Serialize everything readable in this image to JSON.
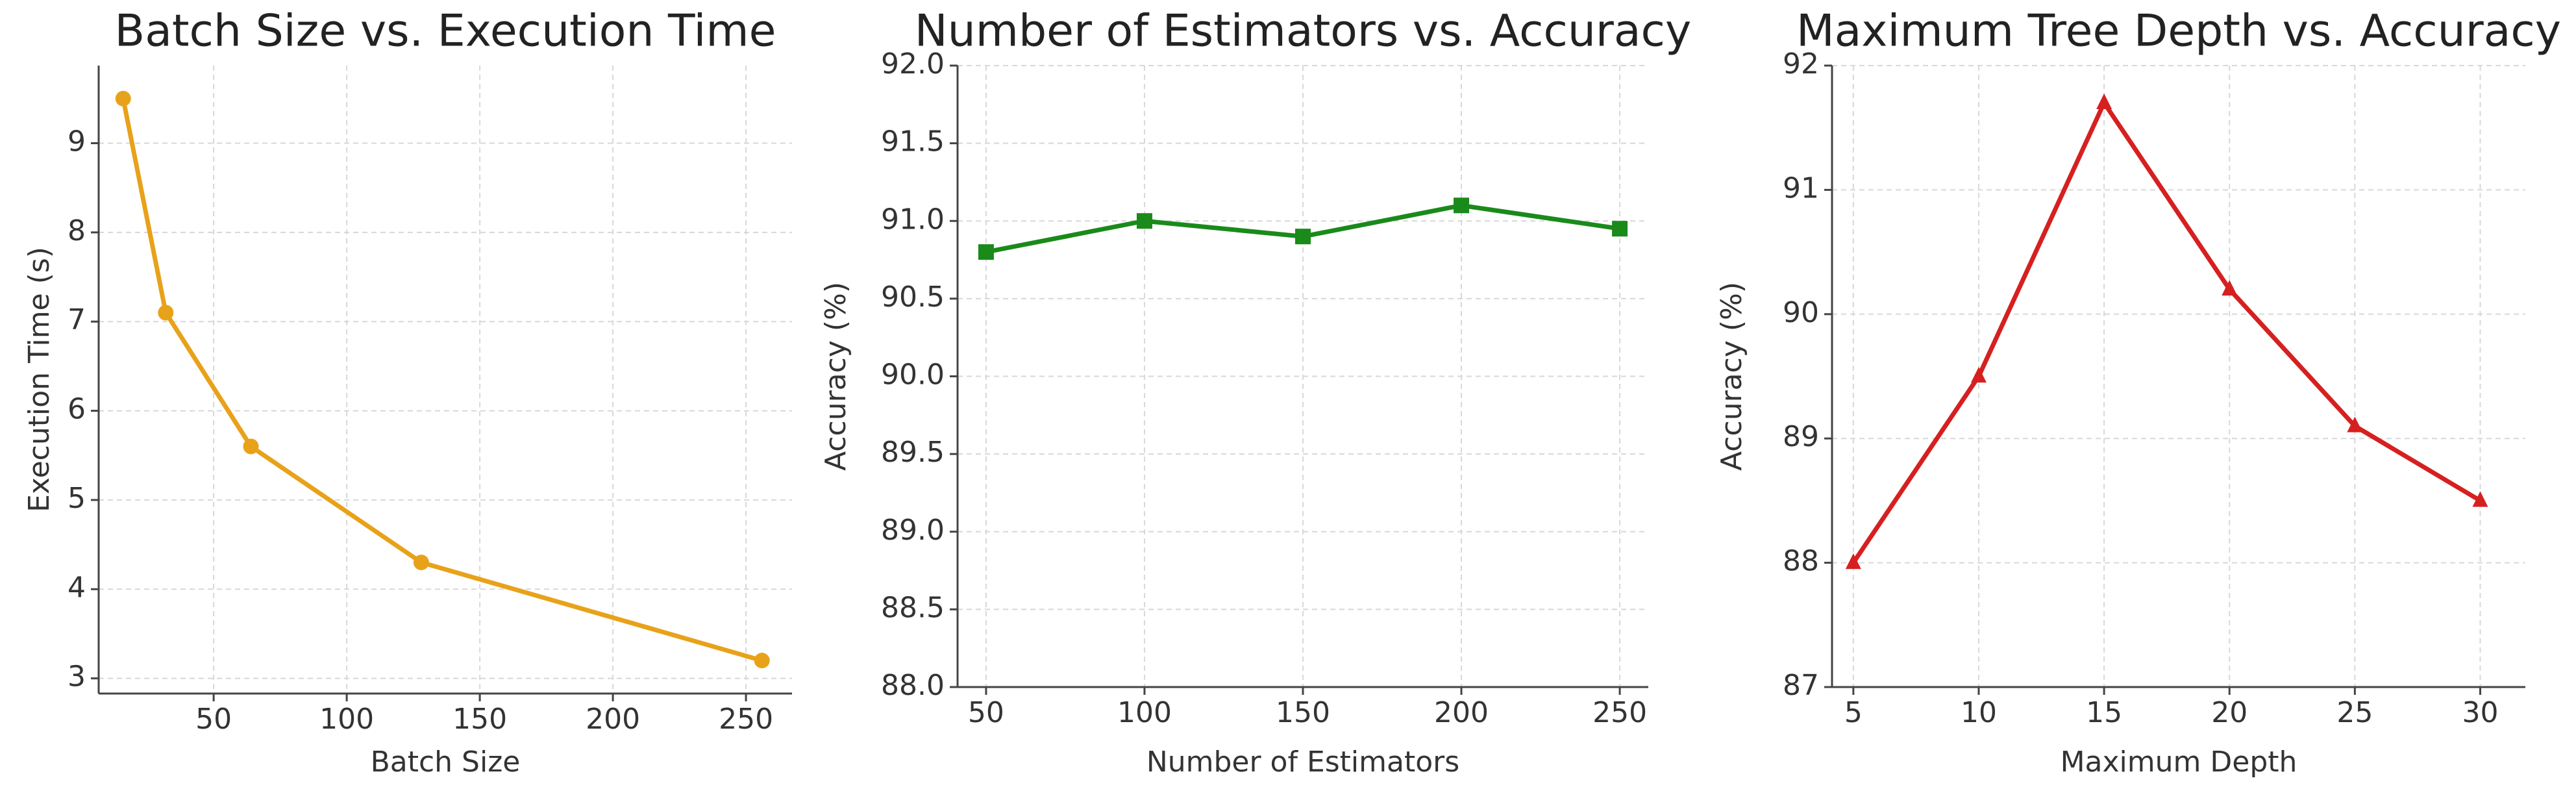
{
  "chart_data": [
    {
      "type": "line",
      "title": "Batch Size vs. Execution Time",
      "x_label": "Batch Size",
      "y_label": "Execution Time (s)",
      "x": [
        16,
        32,
        64,
        128,
        256
      ],
      "values": [
        9.5,
        7.1,
        5.6,
        4.3,
        3.2
      ],
      "color": "#e8a21a",
      "marker": "circle",
      "xlim": [
        6.8,
        267.3
      ],
      "xticks": [
        50,
        100,
        150,
        200,
        250
      ],
      "ylim": [
        2.83,
        9.87
      ],
      "yticks": [
        3,
        4,
        5,
        6,
        7,
        8,
        9
      ],
      "grid": true
    },
    {
      "type": "line",
      "title": "Number of Estimators vs. Accuracy",
      "x_label": "Number of Estimators",
      "y_label": "Accuracy (%)",
      "x": [
        50,
        100,
        150,
        200,
        250
      ],
      "values": [
        90.8,
        91.0,
        90.9,
        91.1,
        90.95
      ],
      "color": "#1a8a1a",
      "marker": "square",
      "xlim": [
        41,
        259
      ],
      "xticks": [
        50,
        100,
        150,
        200,
        250
      ],
      "ylim": [
        88,
        92
      ],
      "yticks": [
        {
          "value": 88,
          "label": "88.0"
        },
        {
          "value": 88.5,
          "label": "88.5"
        },
        {
          "value": 89,
          "label": "89.0"
        },
        {
          "value": 89.5,
          "label": "89.5"
        },
        {
          "value": 90,
          "label": "90.0"
        },
        {
          "value": 90.5,
          "label": "90.5"
        },
        {
          "value": 91,
          "label": "91.0"
        },
        {
          "value": 91.5,
          "label": "91.5"
        },
        {
          "value": 92,
          "label": "92.0"
        }
      ],
      "grid": true
    },
    {
      "type": "line",
      "title": "Maximum Tree Depth vs. Accuracy",
      "x_label": "Maximum Depth",
      "y_label": "Accuracy (%)",
      "x": [
        5,
        10,
        15,
        20,
        25,
        30
      ],
      "values": [
        88.0,
        89.5,
        91.7,
        90.2,
        89.1,
        88.5
      ],
      "color": "#d62020",
      "marker": "triangle",
      "xlim": [
        4.15,
        31.8
      ],
      "xticks": [
        5,
        10,
        15,
        20,
        25,
        30
      ],
      "ylim": [
        87,
        92
      ],
      "yticks": [
        87,
        88,
        89,
        90,
        91,
        92
      ],
      "grid": true
    }
  ]
}
